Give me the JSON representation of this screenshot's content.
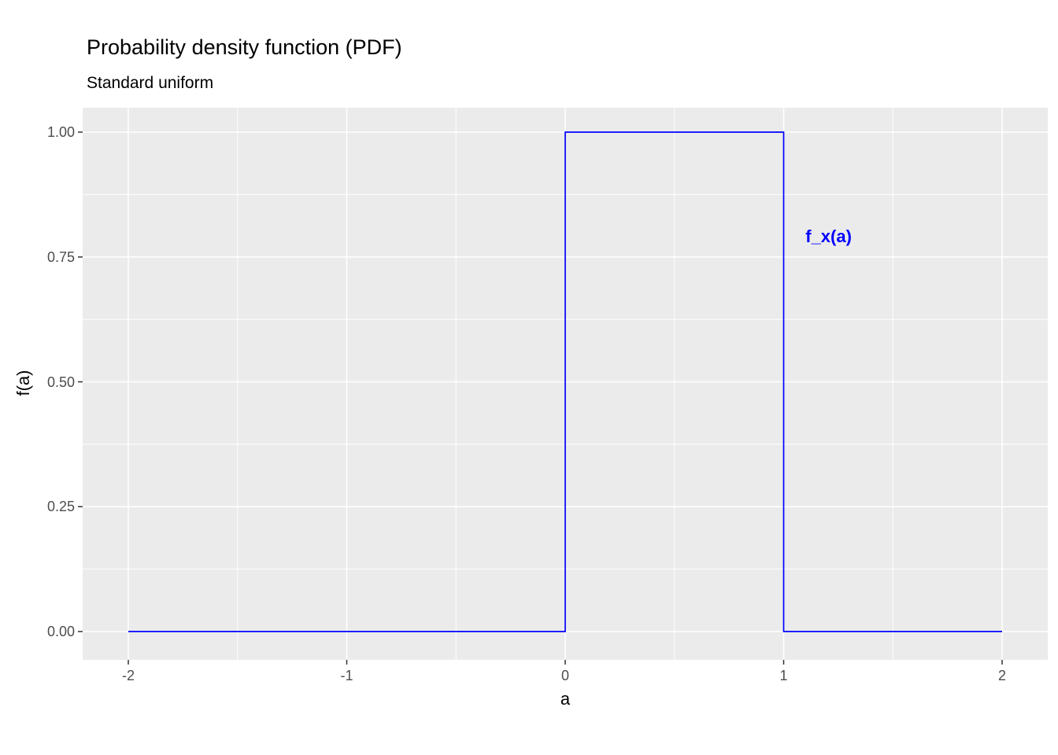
{
  "chart_data": {
    "type": "line",
    "title": "Probability density function (PDF)",
    "subtitle": "Standard uniform",
    "xlabel": "a",
    "ylabel": "f(a)",
    "xlim": [
      -2.21,
      2.21
    ],
    "ylim": [
      -0.055,
      1.05
    ],
    "grid": true,
    "legend": false,
    "x_ticks": [
      -2,
      -1,
      0,
      1,
      2
    ],
    "x_tick_labels": [
      "-2",
      "-1",
      "0",
      "1",
      "2"
    ],
    "y_ticks": [
      0,
      0.25,
      0.5,
      0.75,
      1
    ],
    "y_tick_labels": [
      "0.00",
      "0.25",
      "0.50",
      "0.75",
      "1.00"
    ],
    "x_minor_ticks": [
      -1.5,
      -0.5,
      0.5,
      1.5
    ],
    "y_minor_ticks": [
      0.125,
      0.375,
      0.625,
      0.875
    ],
    "series": [
      {
        "name": "f_x(a)",
        "color": "#0000FF",
        "step_points": [
          [
            -2,
            0
          ],
          [
            0,
            0
          ],
          [
            0,
            1
          ],
          [
            1,
            1
          ],
          [
            1,
            0
          ],
          [
            2,
            0
          ]
        ]
      }
    ],
    "annotation": {
      "text": "f_x(a)",
      "x": 1.1,
      "y": 0.79,
      "color": "#0000FF"
    },
    "colors": {
      "panel_bg": "#EBEBEB",
      "gridline": "#FFFFFF",
      "tick_text": "#4D4D4D",
      "tick_mark": "#333333",
      "line": "#0000FF"
    }
  }
}
